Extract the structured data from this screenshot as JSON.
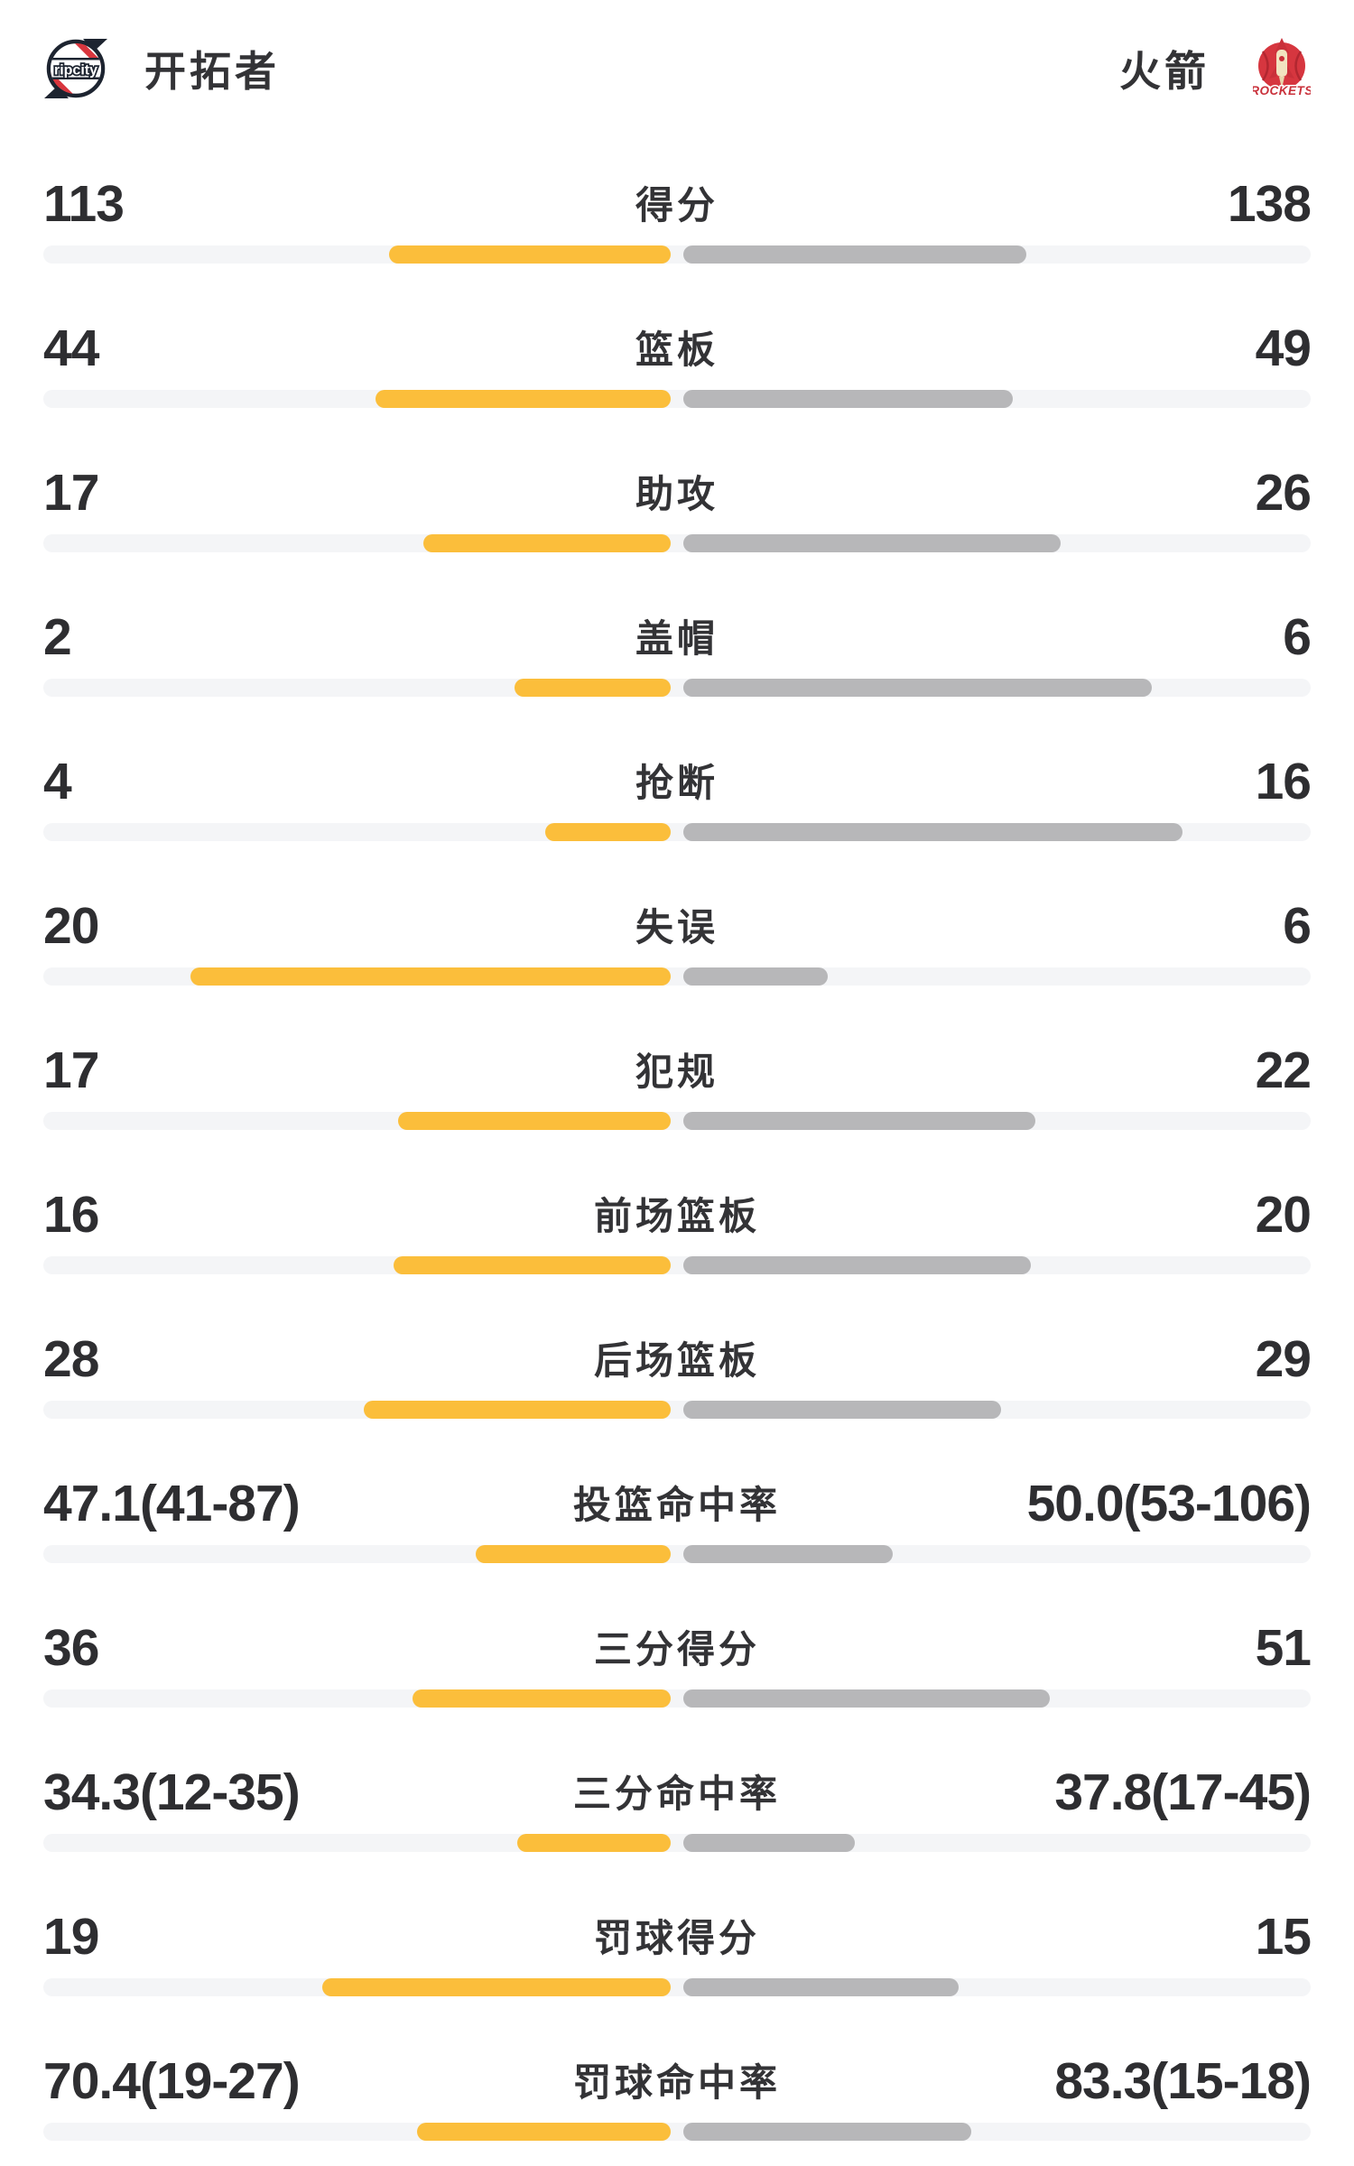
{
  "header": {
    "home": {
      "name": "开拓者",
      "logo_text": "ripcity"
    },
    "away": {
      "name": "火箭",
      "logo_text": "ROCKETS"
    }
  },
  "chart_data": {
    "type": "bar",
    "layout": "mirrored-horizontal-bars-from-center",
    "home_team": "开拓者",
    "away_team": "火箭",
    "colors": {
      "home_bar": "#FBBE3B",
      "away_bar": "#B7B7B9",
      "track": "#F4F5F7",
      "value_text": "#2e2e31",
      "label_text": "#333336",
      "home_logo_red": "#D9363E",
      "away_logo_red": "#D6363F"
    },
    "rows": [
      {
        "label": "得分",
        "home": "113",
        "away": "138",
        "home_value": 113,
        "away_value": 138,
        "home_bar_pct": 22.2,
        "away_bar_pct": 27.1
      },
      {
        "label": "篮板",
        "home": "44",
        "away": "49",
        "home_value": 44,
        "away_value": 49,
        "home_bar_pct": 23.3,
        "away_bar_pct": 26.0
      },
      {
        "label": "助攻",
        "home": "17",
        "away": "26",
        "home_value": 17,
        "away_value": 26,
        "home_bar_pct": 19.5,
        "away_bar_pct": 29.8
      },
      {
        "label": "盖帽",
        "home": "2",
        "away": "6",
        "home_value": 2,
        "away_value": 6,
        "home_bar_pct": 12.3,
        "away_bar_pct": 37.0
      },
      {
        "label": "抢断",
        "home": "4",
        "away": "16",
        "home_value": 4,
        "away_value": 16,
        "home_bar_pct": 9.9,
        "away_bar_pct": 39.4
      },
      {
        "label": "失误",
        "home": "20",
        "away": "6",
        "home_value": 20,
        "away_value": 6,
        "home_bar_pct": 37.9,
        "away_bar_pct": 11.4
      },
      {
        "label": "犯规",
        "home": "17",
        "away": "22",
        "home_value": 17,
        "away_value": 22,
        "home_bar_pct": 21.5,
        "away_bar_pct": 27.8
      },
      {
        "label": "前场篮板",
        "home": "16",
        "away": "20",
        "home_value": 16,
        "away_value": 20,
        "home_bar_pct": 21.9,
        "away_bar_pct": 27.4
      },
      {
        "label": "后场篮板",
        "home": "28",
        "away": "29",
        "home_value": 28,
        "away_value": 29,
        "home_bar_pct": 24.2,
        "away_bar_pct": 25.1
      },
      {
        "label": "投篮命中率",
        "home": "47.1(41-87)",
        "away": "50.0(53-106)",
        "home_pct": 47.1,
        "home_made": 41,
        "home_att": 87,
        "away_pct": 50.0,
        "away_made": 53,
        "away_att": 106,
        "home_bar_pct": 15.4,
        "away_bar_pct": 16.5
      },
      {
        "label": "三分得分",
        "home": "36",
        "away": "51",
        "home_value": 36,
        "away_value": 51,
        "home_bar_pct": 20.4,
        "away_bar_pct": 28.9
      },
      {
        "label": "三分命中率",
        "home": "34.3(12-35)",
        "away": "37.8(17-45)",
        "home_pct": 34.3,
        "home_made": 12,
        "home_att": 35,
        "away_pct": 37.8,
        "away_made": 17,
        "away_att": 45,
        "home_bar_pct": 12.1,
        "away_bar_pct": 13.5
      },
      {
        "label": "罚球得分",
        "home": "19",
        "away": "15",
        "home_value": 19,
        "away_value": 15,
        "home_bar_pct": 27.5,
        "away_bar_pct": 21.7
      },
      {
        "label": "罚球命中率",
        "home": "70.4(19-27)",
        "away": "83.3(15-18)",
        "home_pct": 70.4,
        "home_made": 19,
        "home_att": 27,
        "away_pct": 83.3,
        "away_made": 15,
        "away_att": 18,
        "home_bar_pct": 20.0,
        "away_bar_pct": 22.7
      }
    ]
  }
}
